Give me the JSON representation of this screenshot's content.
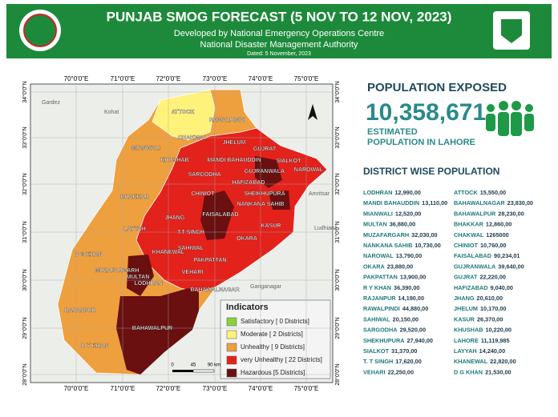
{
  "header": {
    "title": "PUNJAB SMOG FORECAST (5 NOV TO 12 NOV, 2023)",
    "subtitle": "Developed by National Emergency Operations Centre",
    "authority": "National Disaster Management Authority",
    "dated": "Dated: 5 November, 2023"
  },
  "map": {
    "lon_labels": [
      "70°0'0\"E",
      "71°0'0\"E",
      "72°0'0\"E",
      "73°0'0\"E",
      "74°0'0\"E",
      "75°0'0\"E"
    ],
    "lat_labels": [
      "34°0'0\"N",
      "33°0'0\"N",
      "32°0'0\"N",
      "31°0'0\"N",
      "30°0'0\"N",
      "29°0'0\"N",
      "28°0'0\"N"
    ],
    "district_labels": [
      "ATTOCK",
      "RAWALPINDI",
      "CHAKWAL",
      "JHELUM",
      "GUJRAT",
      "MIANWALI",
      "KHUSHAB",
      "MANDI BAHAUDDIN",
      "SIALKOT",
      "SARGODHA",
      "GUJRANWALA",
      "NAROWAL",
      "HAFIZABAD",
      "CHINIOT",
      "SHEIKHUPURA",
      "BHAKKAR",
      "NANKANA SAHIB",
      "JHANG",
      "FAISALABAD",
      "KASUR",
      "LAYYAH",
      "T.T SINGH",
      "OKARA",
      "D G KHAN",
      "KHANEWAL",
      "SAHIWAL",
      "PAKPATTAN",
      "MUZAFARGARH",
      "MULTAN",
      "LODHRAN",
      "VEHARI",
      "BAHAWALNAGAR",
      "RAJANPUR",
      "BAHAWALPUR",
      "R Y KHAN"
    ],
    "places": [
      "Gardez",
      "Kohat",
      "Amritsar",
      "Ludhiana",
      "Ganganagar"
    ],
    "legend": {
      "title": "Indicators",
      "items": [
        {
          "label": "Satisfactory [ 0 Districts]",
          "color": "#8bd13c"
        },
        {
          "label": "Moderate [ 2 Districts]",
          "color": "#fff27a"
        },
        {
          "label": "Unhealthy [ 9 Districts]",
          "color": "#ee9f3e"
        },
        {
          "label": "very Unhealthy [ 22 Districts]",
          "color": "#e3221b"
        },
        {
          "label": "Hazardous [5 Districts]",
          "color": "#6a1010"
        }
      ]
    },
    "scale": [
      "0",
      "45",
      "90 km"
    ]
  },
  "summary": {
    "title": "POPULATION EXPOSED",
    "value": "10,358,671",
    "caption_1": "ESTIMATED",
    "caption_2": "POPULATION IN LAHORE"
  },
  "district_population": {
    "title": "DISTRICT WISE POPULATION",
    "left": [
      [
        "LODHRAN",
        "12,990,00"
      ],
      [
        "MANDI BAHAUDDIN",
        "13,110,00"
      ],
      [
        "MIANWALI",
        "12,520,00"
      ],
      [
        "MULTAN",
        "36,880,00"
      ],
      [
        "MUZAFARGARH",
        "32,030,00"
      ],
      [
        "NANKANA SAHIB",
        "10,730,00"
      ],
      [
        "NAROWAL",
        "13,790,00"
      ],
      [
        "OKARA",
        "23,880,00"
      ],
      [
        "PAKPATTAN",
        "13,900,00"
      ],
      [
        "R Y KHAN",
        "36,390,00"
      ],
      [
        "RAJANPUR",
        "14,190,00"
      ],
      [
        "RAWALPINDI",
        "44,880,00"
      ],
      [
        "SAHIWAL",
        "20,150,00"
      ],
      [
        "SARGODHA",
        "29,520,00"
      ],
      [
        "SHEKHUPURA",
        "27,940,00"
      ],
      [
        "SIALKOT",
        "31,370,00"
      ],
      [
        "T. T SINGH",
        "17,620,00"
      ],
      [
        "VEHARI",
        "22,250,00"
      ]
    ],
    "right": [
      [
        "ATTOCK",
        "15,550,00"
      ],
      [
        "BAHAWALNAGAR",
        "23,830,00"
      ],
      [
        "BAHAWALPUR",
        "28,230,00"
      ],
      [
        "BHAKKAR",
        "12,860,00"
      ],
      [
        "CHAKWAL",
        "1265000"
      ],
      [
        "CHINIOT",
        "10,760,00"
      ],
      [
        "FAISALABAD",
        "90,234,01"
      ],
      [
        "GUJRANWALA",
        "39,640,00"
      ],
      [
        "GUJRAT",
        "22,220,00"
      ],
      [
        "HAFIZABAD",
        "9,040,00"
      ],
      [
        "JHANG",
        "20,610,00"
      ],
      [
        "JHELUM",
        "10,170,00"
      ],
      [
        "KASUR",
        "26,370,00"
      ],
      [
        "KHUSHAB",
        "10,220,00"
      ],
      [
        "LAHORE",
        "11,119,985"
      ],
      [
        "LAYYAH",
        "14,240,00"
      ],
      [
        "KHANEWAL",
        "22,820,00"
      ],
      [
        "D G KHAN",
        "21,530,00"
      ]
    ]
  }
}
